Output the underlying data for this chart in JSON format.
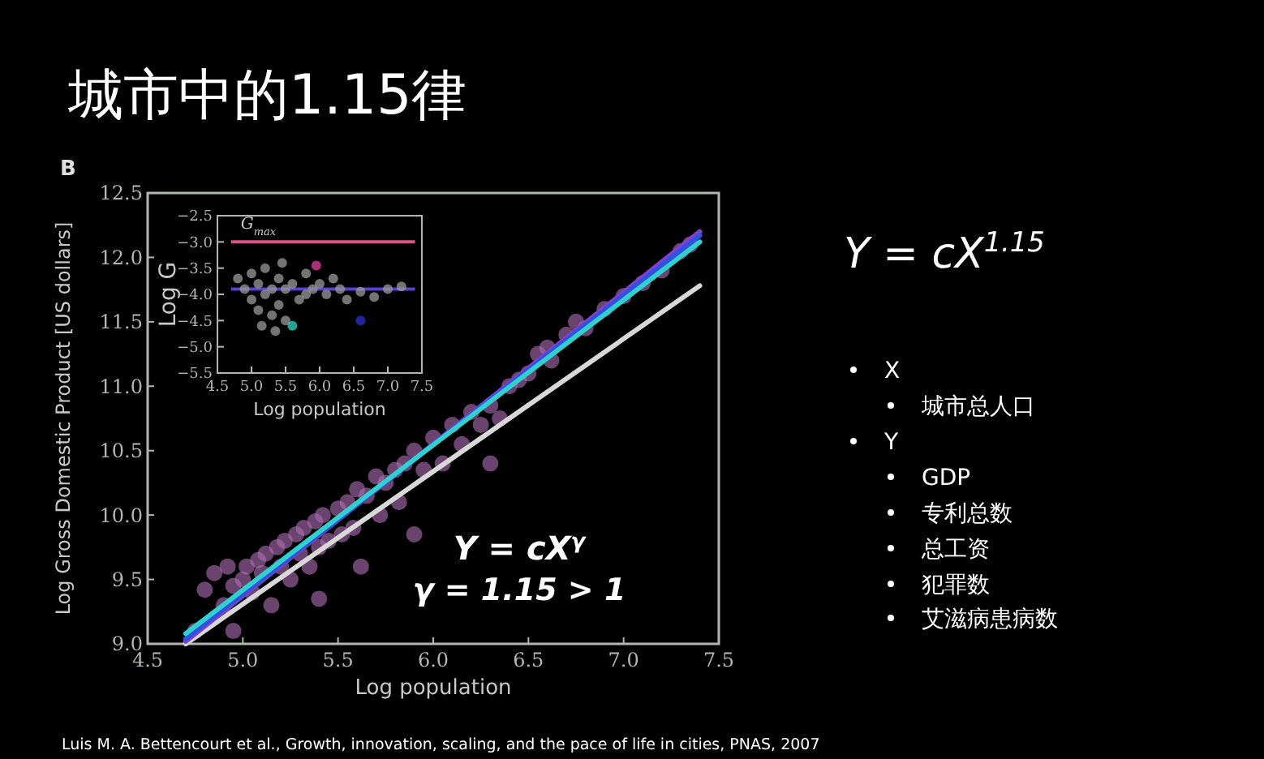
{
  "chart_data": [
    {
      "type": "scatter",
      "title": "城市中的1.15律",
      "xlabel": "Log population",
      "ylabel": "Log Gross Domestic Product [US dollars]",
      "xlim": [
        4.5,
        7.5
      ],
      "ylim": [
        9.0,
        12.5
      ],
      "xticks": [
        4.5,
        {
          "value": 5.0,
          "label": "5.0"
        },
        5.5,
        {
          "value": 6.0,
          "label": "6.0"
        },
        6.5,
        {
          "value": 7.0,
          "label": "7.0"
        },
        7.5
      ],
      "yticks": [
        {
          "value": 9.0,
          "label": "9.0"
        },
        9.5,
        {
          "value": 10.0,
          "label": "10.0"
        },
        10.5,
        {
          "value": 11.0,
          "label": "11.0"
        },
        11.5,
        {
          "value": 12.0,
          "label": "12.0"
        },
        12.5
      ],
      "grid": false,
      "annotations": [
        "B",
        "Y = cX$^{γ}$",
        "γ = 1.15 > 1",
        "Luis M. A. Bettencourt et al., Growth, innovation, scaling, and the pace of life in cities, PNAS, 2007"
      ],
      "series": [
        {
          "color": "#b070b8",
          "marker": "circle",
          "x": [
            4.75,
            4.8,
            4.85,
            4.9,
            4.92,
            4.95,
            4.95,
            5.0,
            5.02,
            5.05,
            5.08,
            5.1,
            5.12,
            5.15,
            5.18,
            5.2,
            5.22,
            5.25,
            5.28,
            5.3,
            5.32,
            5.35,
            5.38,
            5.4,
            5.4,
            5.42,
            5.45,
            5.5,
            5.52,
            5.55,
            5.58,
            5.6,
            5.62,
            5.65,
            5.7,
            5.72,
            5.75,
            5.8,
            5.82,
            5.85,
            5.9,
            5.9,
            5.95,
            6.0,
            6.05,
            6.1,
            6.15,
            6.2,
            6.25,
            6.3,
            6.3,
            6.35,
            6.4,
            6.45,
            6.5,
            6.55,
            6.6,
            6.62,
            6.7,
            6.75,
            6.8,
            6.9,
            7.0,
            7.1,
            7.2,
            7.3,
            7.35
          ],
          "values": [
            9.1,
            9.42,
            9.55,
            9.3,
            9.6,
            9.45,
            9.1,
            9.5,
            9.6,
            9.4,
            9.65,
            9.55,
            9.7,
            9.3,
            9.75,
            9.6,
            9.8,
            9.5,
            9.85,
            9.7,
            9.9,
            9.6,
            9.95,
            9.75,
            9.35,
            10.0,
            9.8,
            10.05,
            9.85,
            10.1,
            9.9,
            10.2,
            9.6,
            10.15,
            10.3,
            10.0,
            10.25,
            10.35,
            10.1,
            10.4,
            10.5,
            9.85,
            10.35,
            10.6,
            10.4,
            10.7,
            10.55,
            10.8,
            10.7,
            10.85,
            10.4,
            10.75,
            11.0,
            11.05,
            11.1,
            11.25,
            11.3,
            11.2,
            11.4,
            11.5,
            11.45,
            11.6,
            11.7,
            11.8,
            11.9,
            12.05,
            12.1
          ]
        },
        {
          "type": "line",
          "color": "#d8d8d8",
          "x": [
            4.7,
            7.4
          ],
          "values": [
            9.0,
            11.78
          ]
        },
        {
          "type": "line",
          "color": "#8040d0",
          "x": [
            4.7,
            7.4
          ],
          "values": [
            9.02,
            12.2
          ]
        },
        {
          "type": "line",
          "color": "#3050e0",
          "x": [
            4.7,
            7.4
          ],
          "values": [
            9.04,
            12.17
          ]
        },
        {
          "type": "line",
          "color": "#30d0d0",
          "x": [
            4.7,
            7.4
          ],
          "values": [
            9.08,
            12.12
          ]
        }
      ]
    },
    {
      "type": "scatter",
      "xlabel": "Log population",
      "ylabel": "Log G",
      "xlim": [
        4.5,
        7.5
      ],
      "ylim": [
        -5.5,
        -2.5
      ],
      "xticks": [
        4.5,
        {
          "value": 5.0,
          "label": "5.0"
        },
        5.5,
        {
          "value": 6.0,
          "label": "6.0"
        },
        6.5,
        {
          "value": 7.0,
          "label": "7.0"
        },
        7.5
      ],
      "yticks": [
        {
          "value": -2.5,
          "label": "−2.5"
        },
        {
          "value": -3.0,
          "label": "−3.0"
        },
        {
          "value": -3.5,
          "label": "−3.5"
        },
        {
          "value": -4.0,
          "label": "−4.0"
        },
        {
          "value": -4.5,
          "label": "−4.5"
        },
        {
          "value": -5.0,
          "label": "−5.0"
        },
        {
          "value": -5.5,
          "label": "−5.5"
        }
      ],
      "grid": false,
      "marker": "circle",
      "ref_lines": [
        {
          "axis": "y",
          "value": -3.0,
          "label": "G$_{max}$",
          "color": "#e0508a"
        },
        {
          "axis": "y",
          "value": -3.9,
          "color": "#5a40d0"
        }
      ],
      "series": [
        {
          "color": "#9a9a9a",
          "x": [
            4.8,
            4.9,
            5.0,
            5.0,
            5.1,
            5.1,
            5.2,
            5.2,
            5.3,
            5.3,
            5.4,
            5.4,
            5.5,
            5.5,
            5.6,
            5.7,
            5.8,
            5.8,
            5.9,
            6.0,
            6.1,
            6.2,
            6.3,
            6.4,
            6.6,
            6.8,
            7.0,
            7.2,
            5.15,
            5.35,
            5.45
          ],
          "values": [
            -3.7,
            -3.9,
            -3.6,
            -4.1,
            -3.8,
            -4.3,
            -3.5,
            -4.0,
            -3.9,
            -4.4,
            -3.7,
            -4.2,
            -3.9,
            -4.5,
            -3.8,
            -4.1,
            -3.6,
            -4.0,
            -3.9,
            -3.8,
            -4.0,
            -3.7,
            -3.9,
            -4.1,
            -3.95,
            -4.05,
            -3.9,
            -3.85,
            -4.6,
            -4.7,
            -3.4
          ]
        },
        {
          "color": "#e040a0",
          "x": [
            5.95
          ],
          "values": [
            -3.45
          ]
        },
        {
          "color": "#30d8c8",
          "x": [
            5.6
          ],
          "values": [
            -4.6
          ]
        },
        {
          "color": "#3030d0",
          "x": [
            6.6
          ],
          "values": [
            -4.5
          ]
        }
      ]
    },
    {
      "type": "other",
      "annotations": [
        "Y = cX$^{1.15}$",
        "X",
        "城市总人口",
        "Y",
        "GDP",
        "专利总数",
        "总工资",
        "犯罪数",
        "艾滋病患病数"
      ]
    }
  ]
}
